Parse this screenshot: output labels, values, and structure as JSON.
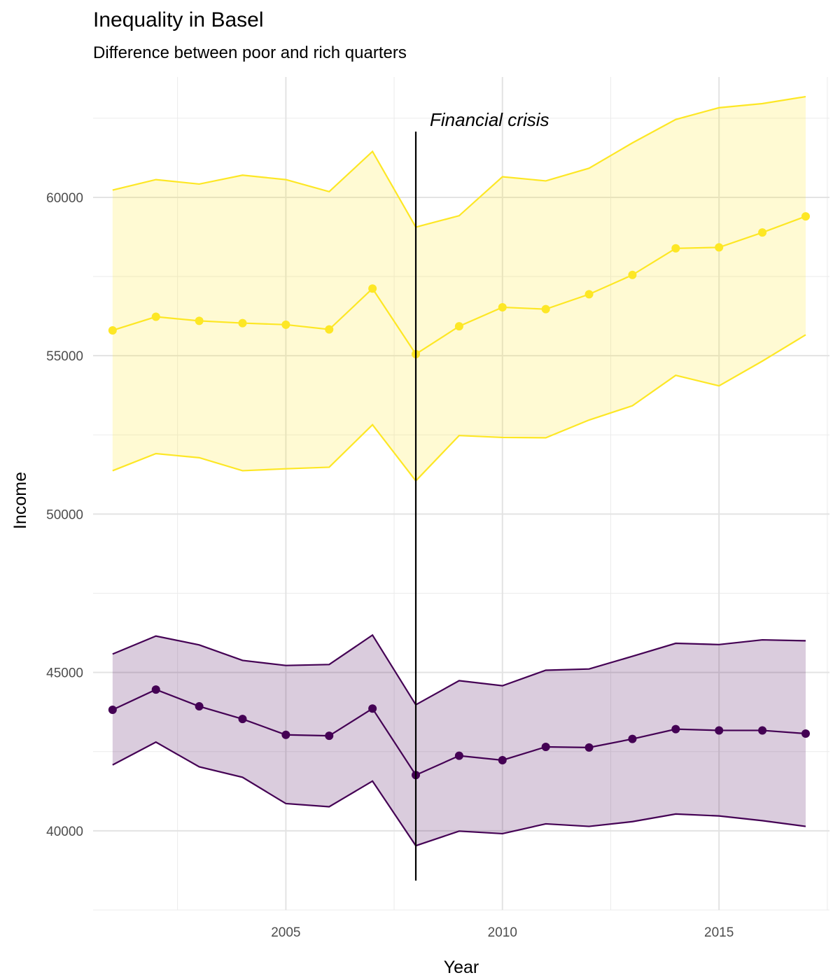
{
  "chart_data": {
    "type": "line",
    "title": "Inequality in Basel",
    "subtitle": "Difference between poor and rich quarters",
    "xlabel": "Year",
    "ylabel": "Income",
    "xlim": [
      2000.55,
      2017.55
    ],
    "ylim": [
      37500,
      63800
    ],
    "x_ticks": [
      2005,
      2010,
      2015
    ],
    "y_ticks": [
      40000,
      45000,
      50000,
      55000,
      60000
    ],
    "grid": true,
    "legend": "none",
    "x": [
      2001,
      2002,
      2003,
      2004,
      2005,
      2006,
      2007,
      2008,
      2009,
      2010,
      2011,
      2012,
      2013,
      2014,
      2015,
      2016,
      2017
    ],
    "series": [
      {
        "color": "#FDE725",
        "values": [
          55800,
          56230,
          56100,
          56030,
          55980,
          55830,
          57120,
          55050,
          55930,
          56530,
          56470,
          56940,
          57550,
          58390,
          58420,
          58890,
          59400
        ],
        "upper": [
          60230,
          60560,
          60420,
          60700,
          60560,
          60180,
          61450,
          59060,
          59420,
          60650,
          60520,
          60920,
          61720,
          62460,
          62830,
          62960,
          63180
        ],
        "lower": [
          51370,
          51910,
          51780,
          51370,
          51430,
          51480,
          52820,
          51050,
          52480,
          52420,
          52410,
          52970,
          53420,
          54380,
          54050,
          54830,
          55660
        ]
      },
      {
        "color": "#440154",
        "values": [
          43820,
          44460,
          43930,
          43530,
          43030,
          43000,
          43860,
          41760,
          42370,
          42230,
          42650,
          42630,
          42900,
          43210,
          43170,
          43170,
          43070
        ],
        "upper": [
          45580,
          46150,
          45870,
          45380,
          45220,
          45250,
          46180,
          43980,
          44740,
          44580,
          45070,
          45110,
          45510,
          45920,
          45880,
          46030,
          46000
        ],
        "lower": [
          42080,
          42800,
          42020,
          41690,
          40860,
          40760,
          41570,
          39530,
          39990,
          39910,
          40220,
          40140,
          40290,
          40530,
          40470,
          40320,
          40140
        ]
      }
    ],
    "annotations": [
      {
        "x": 2008,
        "type": "vline",
        "color": "#000000",
        "label": "Financial crisis"
      }
    ]
  }
}
